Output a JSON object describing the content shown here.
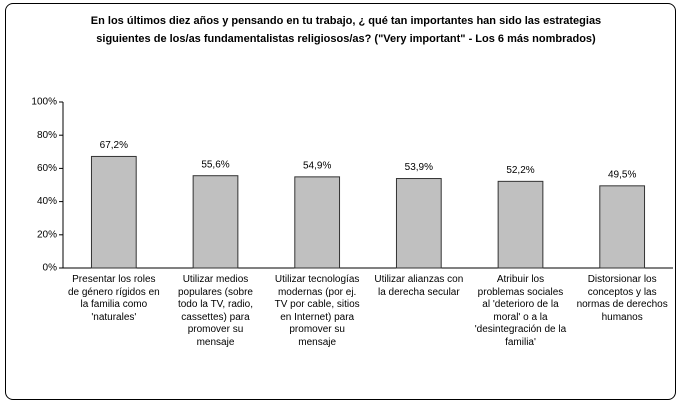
{
  "chart_data": {
    "type": "bar",
    "title": "En los últimos diez años y pensando en tu trabajo, ¿ qué tan importantes han sido las estrategias siguientes de los/as fundamentalistas religiosos/as? (\"Very important\" - Los 6 más nombrados)",
    "categories": [
      "Presentar los roles de género rígidos en la familia como 'naturales'",
      "Utilizar medios populares (sobre todo la TV, radio, cassettes) para promover su mensaje",
      "Utilizar tecnologías modernas (por ej. TV por cable, sitios en Internet) para promover su mensaje",
      "Utilizar alianzas con la derecha secular",
      "Atribuir los problemas sociales al 'deterioro de la moral' o a la 'desintegración de la familia'",
      "Distorsionar los conceptos y las normas de derechos humanos"
    ],
    "values": [
      67.2,
      55.6,
      54.9,
      53.9,
      52.2,
      49.5
    ],
    "value_labels": [
      "67,2%",
      "55,6%",
      "54,9%",
      "53,9%",
      "52,2%",
      "49,5%"
    ],
    "color": "#c0c0c0",
    "ylim": [
      0,
      100
    ],
    "yticks": [
      {
        "value": 0,
        "label": "0%"
      },
      {
        "value": 20,
        "label": "20%"
      },
      {
        "value": 40,
        "label": "40%"
      },
      {
        "value": 60,
        "label": "60%"
      },
      {
        "value": 80,
        "label": "80%"
      },
      {
        "value": 100,
        "label": "100%"
      }
    ],
    "grid": false
  }
}
